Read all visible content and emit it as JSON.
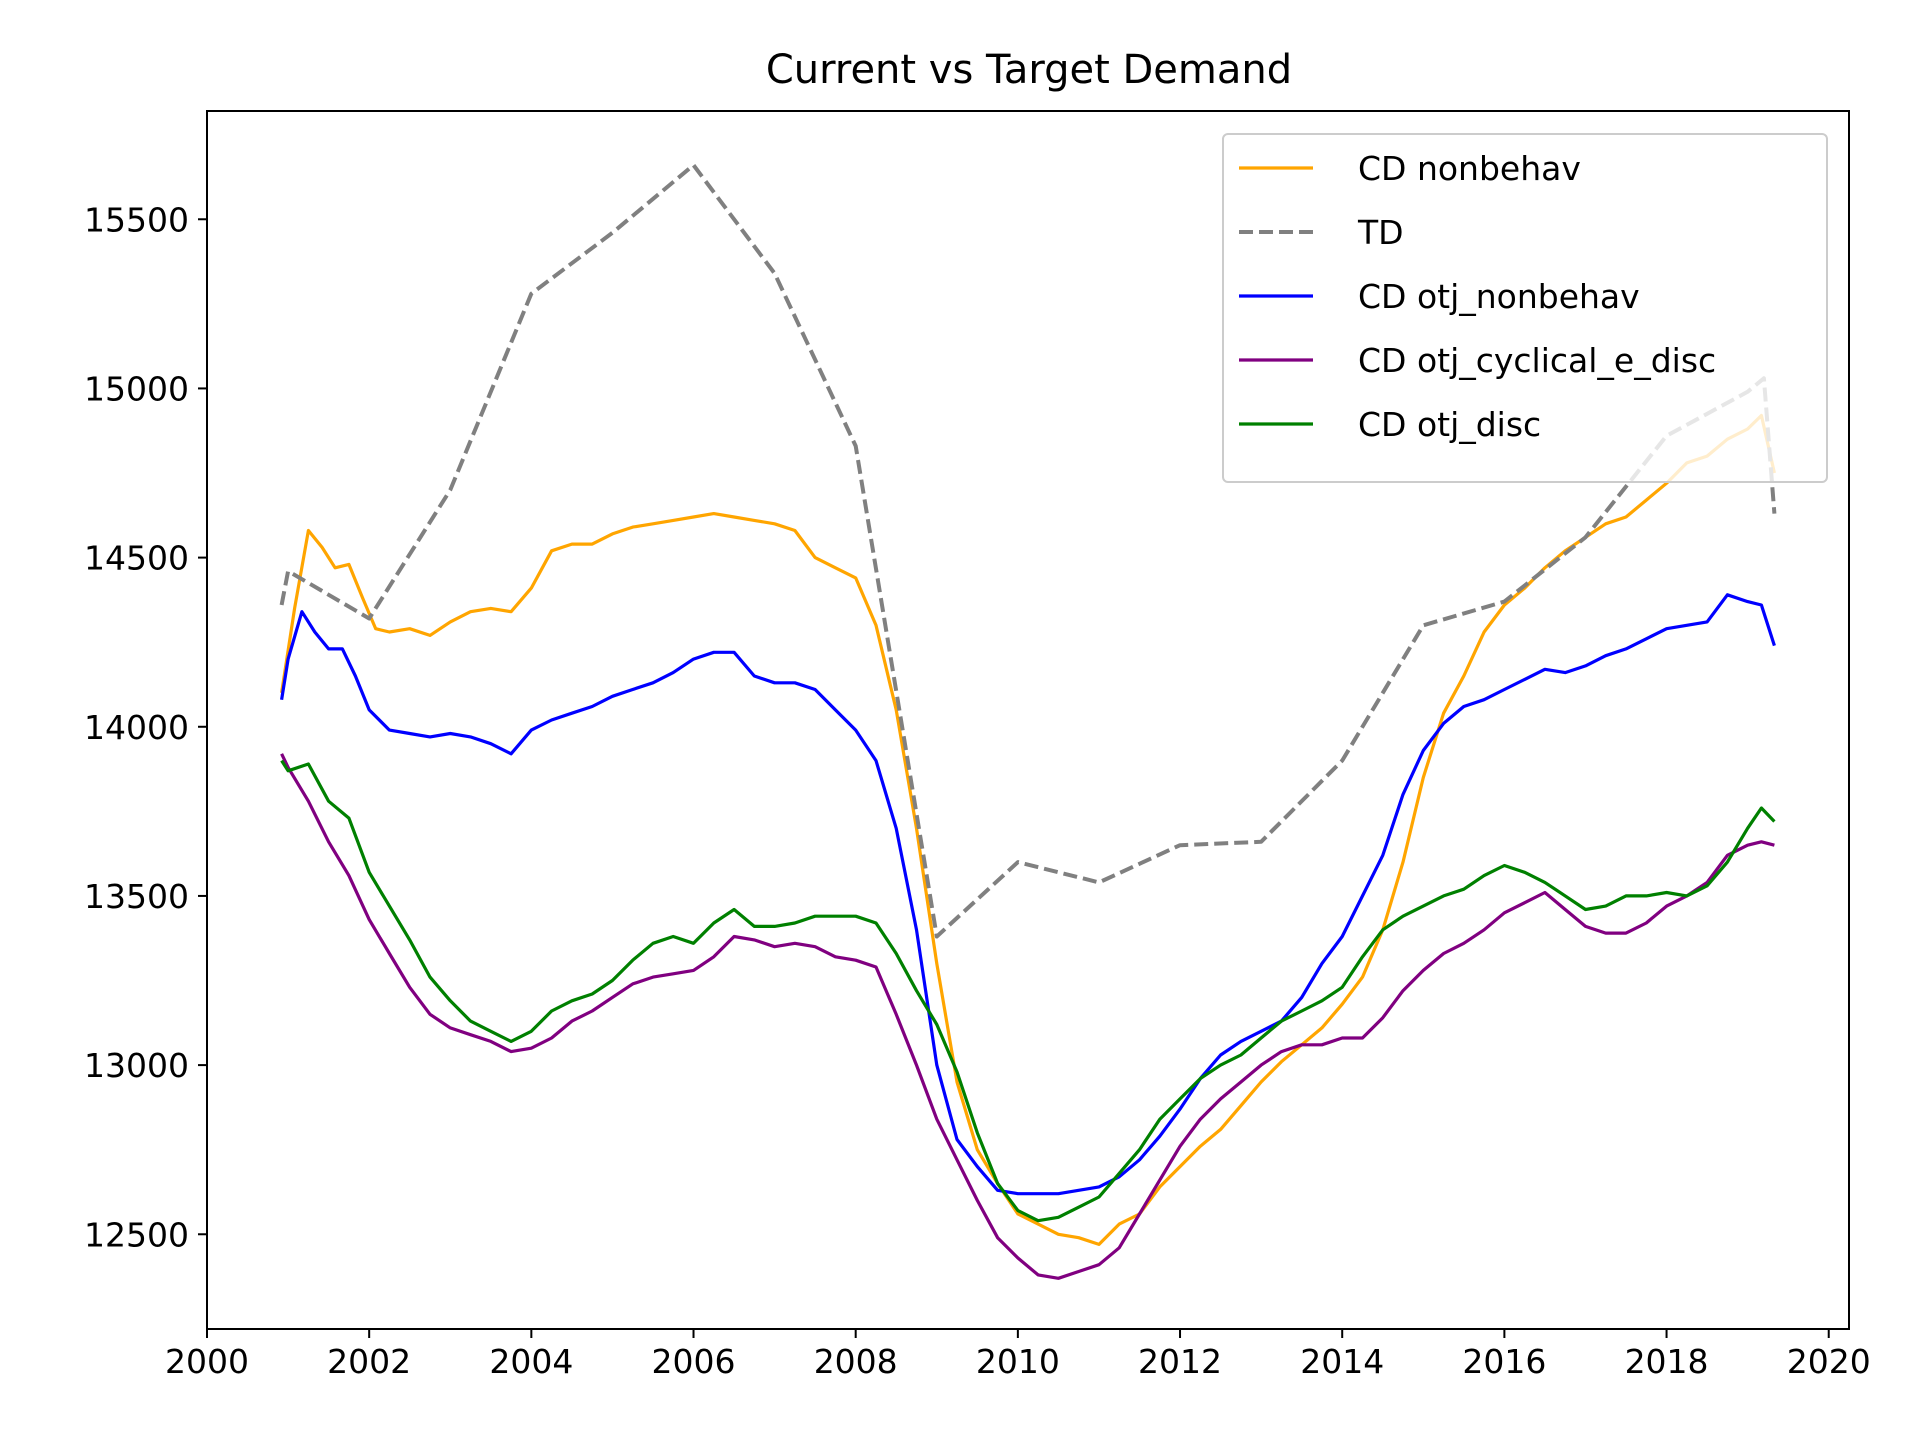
{
  "chart_data": {
    "type": "line",
    "title": "Current vs Target Demand",
    "xlabel": "",
    "ylabel": "",
    "xlim": [
      2000,
      2020.25
    ],
    "ylim": [
      12220,
      15820
    ],
    "x_ticks": [
      2000,
      2002,
      2004,
      2006,
      2008,
      2010,
      2012,
      2014,
      2016,
      2018,
      2020
    ],
    "y_ticks": [
      12500,
      13000,
      13500,
      14000,
      14500,
      15000,
      15500
    ],
    "grid": false,
    "legend_position": "top-right",
    "series": [
      {
        "name": "CD nonbehav",
        "color": "#FFA500",
        "style": "solid",
        "x": [
          2000.92,
          2001.08,
          2001.25,
          2001.42,
          2001.58,
          2001.75,
          2001.92,
          2002.08,
          2002.25,
          2002.5,
          2002.75,
          2003.0,
          2003.25,
          2003.5,
          2003.75,
          2004.0,
          2004.25,
          2004.5,
          2004.75,
          2005.0,
          2005.25,
          2005.5,
          2005.75,
          2006.0,
          2006.25,
          2006.5,
          2006.75,
          2007.0,
          2007.25,
          2007.5,
          2007.75,
          2008.0,
          2008.25,
          2008.5,
          2008.75,
          2009.0,
          2009.25,
          2009.5,
          2009.75,
          2010.0,
          2010.25,
          2010.5,
          2010.75,
          2011.0,
          2011.25,
          2011.5,
          2011.75,
          2012.0,
          2012.25,
          2012.5,
          2012.75,
          2013.0,
          2013.25,
          2013.5,
          2013.75,
          2014.0,
          2014.25,
          2014.5,
          2014.75,
          2015.0,
          2015.25,
          2015.5,
          2015.75,
          2016.0,
          2016.25,
          2016.5,
          2016.75,
          2017.0,
          2017.25,
          2017.5,
          2017.75,
          2018.0,
          2018.25,
          2018.5,
          2018.75,
          2019.0,
          2019.17,
          2019.33
        ],
        "values": [
          14100,
          14350,
          14580,
          14530,
          14470,
          14480,
          14380,
          14290,
          14280,
          14290,
          14270,
          14310,
          14340,
          14350,
          14340,
          14410,
          14520,
          14540,
          14540,
          14570,
          14590,
          14600,
          14610,
          14620,
          14630,
          14620,
          14610,
          14600,
          14580,
          14500,
          14470,
          14440,
          14300,
          14050,
          13700,
          13300,
          12950,
          12750,
          12650,
          12560,
          12530,
          12500,
          12490,
          12470,
          12530,
          12560,
          12640,
          12700,
          12760,
          12810,
          12880,
          12950,
          13010,
          13060,
          13110,
          13180,
          13260,
          13400,
          13600,
          13850,
          14040,
          14150,
          14280,
          14360,
          14410,
          14470,
          14520,
          14560,
          14600,
          14620,
          14670,
          14720,
          14780,
          14800,
          14850,
          14880,
          14920,
          14750
        ]
      },
      {
        "name": "TD",
        "color": "#808080",
        "style": "dashed",
        "x": [
          2000.92,
          2001.0,
          2002.0,
          2003.0,
          2004.0,
          2005.0,
          2006.0,
          2007.0,
          2008.0,
          2009.0,
          2010.0,
          2011.0,
          2012.0,
          2013.0,
          2014.0,
          2015.0,
          2016.0,
          2017.0,
          2018.0,
          2019.0,
          2019.2,
          2019.33
        ],
        "values": [
          14360,
          14460,
          14320,
          14700,
          15280,
          15460,
          15660,
          15340,
          14830,
          13380,
          13600,
          13540,
          13650,
          13660,
          13900,
          14300,
          14370,
          14560,
          14860,
          14990,
          15030,
          14630
        ]
      },
      {
        "name": "CD otj_nonbehav",
        "color": "#0000FF",
        "style": "solid",
        "x": [
          2000.92,
          2001.0,
          2001.17,
          2001.33,
          2001.5,
          2001.67,
          2001.83,
          2002.0,
          2002.25,
          2002.5,
          2002.75,
          2003.0,
          2003.25,
          2003.5,
          2003.75,
          2004.0,
          2004.25,
          2004.5,
          2004.75,
          2005.0,
          2005.25,
          2005.5,
          2005.75,
          2006.0,
          2006.25,
          2006.5,
          2006.75,
          2007.0,
          2007.25,
          2007.5,
          2007.75,
          2008.0,
          2008.25,
          2008.5,
          2008.75,
          2009.0,
          2009.25,
          2009.5,
          2009.75,
          2010.0,
          2010.25,
          2010.5,
          2010.75,
          2011.0,
          2011.25,
          2011.5,
          2011.75,
          2012.0,
          2012.25,
          2012.5,
          2012.75,
          2013.0,
          2013.25,
          2013.5,
          2013.75,
          2014.0,
          2014.25,
          2014.5,
          2014.75,
          2015.0,
          2015.25,
          2015.5,
          2015.75,
          2016.0,
          2016.25,
          2016.5,
          2016.75,
          2017.0,
          2017.25,
          2017.5,
          2017.75,
          2018.0,
          2018.25,
          2018.5,
          2018.75,
          2019.0,
          2019.17,
          2019.33
        ],
        "values": [
          14080,
          14200,
          14340,
          14280,
          14230,
          14230,
          14150,
          14050,
          13990,
          13980,
          13970,
          13980,
          13970,
          13950,
          13920,
          13990,
          14020,
          14040,
          14060,
          14090,
          14110,
          14130,
          14160,
          14200,
          14220,
          14220,
          14150,
          14130,
          14130,
          14110,
          14050,
          13990,
          13900,
          13700,
          13400,
          13000,
          12780,
          12700,
          12630,
          12620,
          12620,
          12620,
          12630,
          12640,
          12670,
          12720,
          12790,
          12870,
          12960,
          13030,
          13070,
          13100,
          13130,
          13200,
          13300,
          13380,
          13500,
          13620,
          13800,
          13930,
          14010,
          14060,
          14080,
          14110,
          14140,
          14170,
          14160,
          14180,
          14210,
          14230,
          14260,
          14290,
          14300,
          14310,
          14390,
          14370,
          14360,
          14240
        ]
      },
      {
        "name": "CD otj_cyclical_e_disc",
        "color": "#800080",
        "style": "solid",
        "x": [
          2000.92,
          2001.0,
          2001.25,
          2001.5,
          2001.75,
          2002.0,
          2002.25,
          2002.5,
          2002.75,
          2003.0,
          2003.25,
          2003.5,
          2003.75,
          2004.0,
          2004.25,
          2004.5,
          2004.75,
          2005.0,
          2005.25,
          2005.5,
          2005.75,
          2006.0,
          2006.25,
          2006.5,
          2006.75,
          2007.0,
          2007.25,
          2007.5,
          2007.75,
          2008.0,
          2008.25,
          2008.5,
          2008.75,
          2009.0,
          2009.25,
          2009.5,
          2009.75,
          2010.0,
          2010.25,
          2010.5,
          2010.75,
          2011.0,
          2011.25,
          2011.5,
          2011.75,
          2012.0,
          2012.25,
          2012.5,
          2012.75,
          2013.0,
          2013.25,
          2013.5,
          2013.75,
          2014.0,
          2014.25,
          2014.5,
          2014.75,
          2015.0,
          2015.25,
          2015.5,
          2015.75,
          2016.0,
          2016.25,
          2016.5,
          2016.75,
          2017.0,
          2017.25,
          2017.5,
          2017.75,
          2018.0,
          2018.25,
          2018.5,
          2018.75,
          2019.0,
          2019.17,
          2019.33
        ],
        "values": [
          13920,
          13880,
          13780,
          13660,
          13560,
          13430,
          13330,
          13230,
          13150,
          13110,
          13090,
          13070,
          13040,
          13050,
          13080,
          13130,
          13160,
          13200,
          13240,
          13260,
          13270,
          13280,
          13320,
          13380,
          13370,
          13350,
          13360,
          13350,
          13320,
          13310,
          13290,
          13150,
          13000,
          12840,
          12720,
          12600,
          12490,
          12430,
          12380,
          12370,
          12390,
          12410,
          12460,
          12560,
          12660,
          12760,
          12840,
          12900,
          12950,
          13000,
          13040,
          13060,
          13060,
          13080,
          13080,
          13140,
          13220,
          13280,
          13330,
          13360,
          13400,
          13450,
          13480,
          13510,
          13460,
          13410,
          13390,
          13390,
          13420,
          13470,
          13500,
          13540,
          13620,
          13650,
          13660,
          13650
        ]
      },
      {
        "name": "CD otj_disc",
        "color": "#008000",
        "style": "solid",
        "x": [
          2000.92,
          2001.0,
          2001.25,
          2001.5,
          2001.75,
          2002.0,
          2002.25,
          2002.5,
          2002.75,
          2003.0,
          2003.25,
          2003.5,
          2003.75,
          2004.0,
          2004.25,
          2004.5,
          2004.75,
          2005.0,
          2005.25,
          2005.5,
          2005.75,
          2006.0,
          2006.25,
          2006.5,
          2006.75,
          2007.0,
          2007.25,
          2007.5,
          2007.75,
          2008.0,
          2008.25,
          2008.5,
          2008.75,
          2009.0,
          2009.25,
          2009.5,
          2009.75,
          2010.0,
          2010.25,
          2010.5,
          2010.75,
          2011.0,
          2011.25,
          2011.5,
          2011.75,
          2012.0,
          2012.25,
          2012.5,
          2012.75,
          2013.0,
          2013.25,
          2013.5,
          2013.75,
          2014.0,
          2014.25,
          2014.5,
          2014.75,
          2015.0,
          2015.25,
          2015.5,
          2015.75,
          2016.0,
          2016.25,
          2016.5,
          2016.75,
          2017.0,
          2017.25,
          2017.5,
          2017.75,
          2018.0,
          2018.25,
          2018.5,
          2018.75,
          2019.0,
          2019.17,
          2019.33
        ],
        "values": [
          13900,
          13870,
          13890,
          13780,
          13730,
          13570,
          13470,
          13370,
          13260,
          13190,
          13130,
          13100,
          13070,
          13100,
          13160,
          13190,
          13210,
          13250,
          13310,
          13360,
          13380,
          13360,
          13420,
          13460,
          13410,
          13410,
          13420,
          13440,
          13440,
          13440,
          13420,
          13330,
          13220,
          13120,
          12980,
          12800,
          12650,
          12570,
          12540,
          12550,
          12580,
          12610,
          12680,
          12750,
          12840,
          12900,
          12960,
          13000,
          13030,
          13080,
          13130,
          13160,
          13190,
          13230,
          13320,
          13400,
          13440,
          13470,
          13500,
          13520,
          13560,
          13590,
          13570,
          13540,
          13500,
          13460,
          13470,
          13500,
          13500,
          13510,
          13500,
          13530,
          13600,
          13700,
          13760,
          13720
        ]
      }
    ]
  }
}
